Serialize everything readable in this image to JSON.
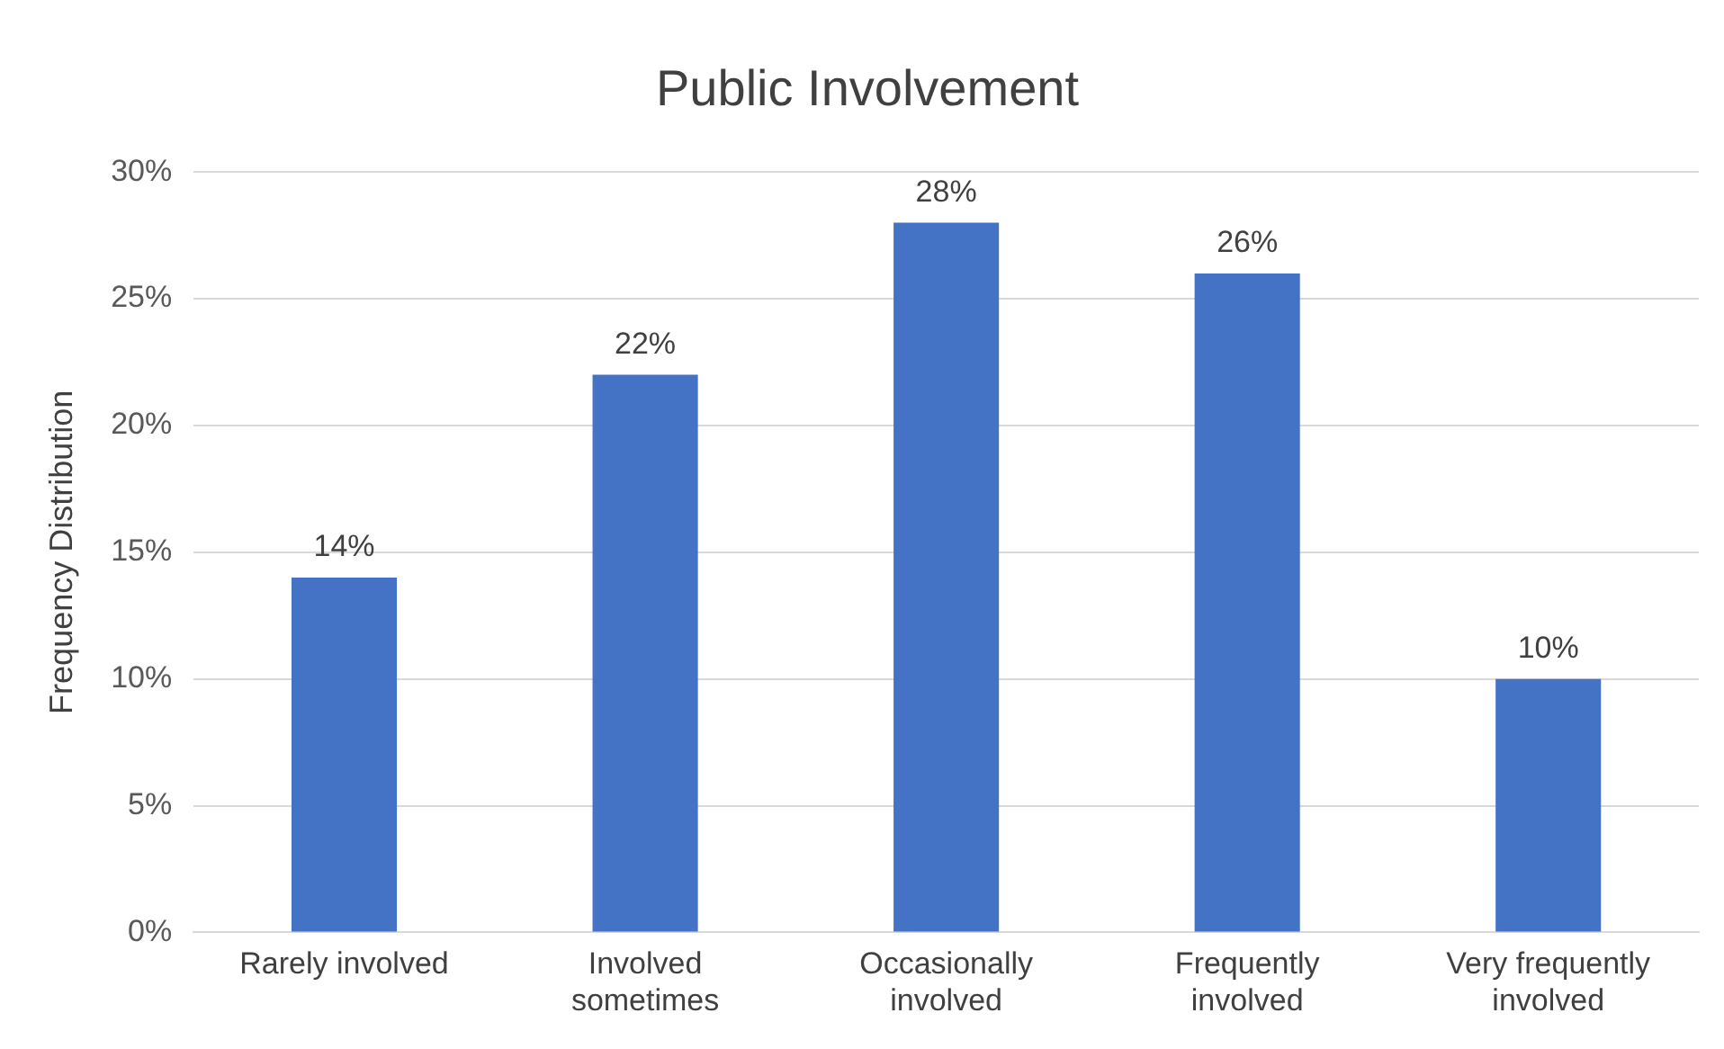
{
  "chart_data": {
    "type": "bar",
    "title": "Public Involvement",
    "ylabel": "Frequency Distribution",
    "categories": [
      "Rarely involved",
      "Involved sometimes",
      "Occasionally involved",
      "Frequently involved",
      "Very frequently involved"
    ],
    "values": [
      14,
      22,
      28,
      26,
      10
    ],
    "value_labels": [
      "14%",
      "22%",
      "28%",
      "26%",
      "10%"
    ],
    "color": "#4472c4",
    "ylim": [
      0,
      30
    ],
    "yticks": [
      {
        "value": 0,
        "label": "0%"
      },
      {
        "value": 5,
        "label": "5%"
      },
      {
        "value": 10,
        "label": "10%"
      },
      {
        "value": 15,
        "label": "15%"
      },
      {
        "value": 20,
        "label": "20%"
      },
      {
        "value": 25,
        "label": "25%"
      },
      {
        "value": 30,
        "label": "30%"
      }
    ],
    "grid": "y",
    "legend": false
  }
}
